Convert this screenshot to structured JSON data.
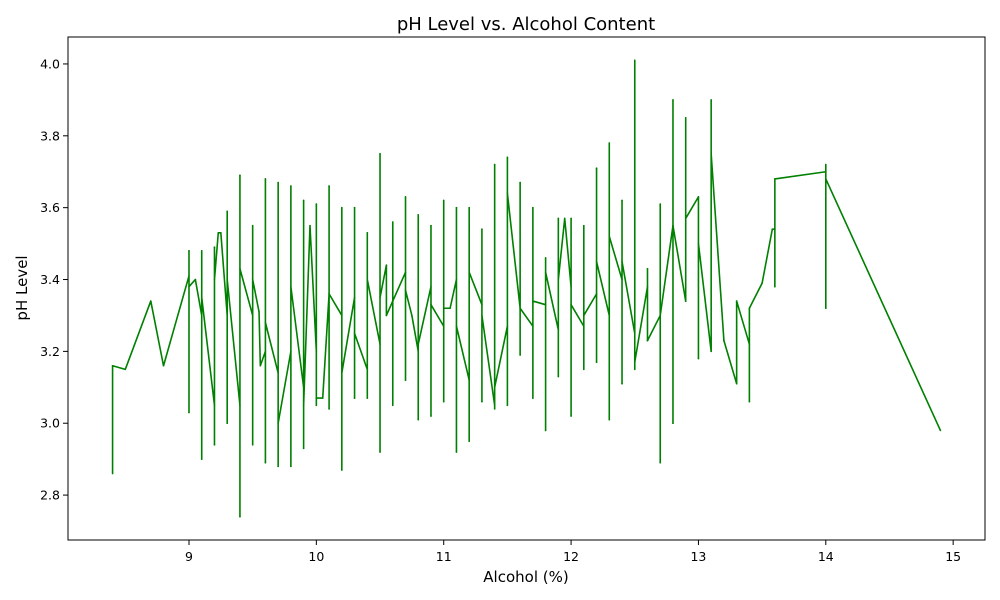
{
  "chart_data": {
    "type": "line",
    "title": "pH Level vs. Alcohol Content",
    "xlabel": "Alcohol (%)",
    "ylabel": "pH Level",
    "xlim": [
      8.05,
      15.25
    ],
    "ylim": [
      2.675,
      4.075
    ],
    "x_ticks": [
      9,
      10,
      11,
      12,
      13,
      14,
      15
    ],
    "y_ticks": [
      2.8,
      3.0,
      3.2,
      3.4,
      3.6,
      3.8,
      4.0
    ],
    "grid": false,
    "line_color": "#008000",
    "series": [
      {
        "points": [
          [
            8.4,
            2.86
          ],
          [
            8.4,
            3.16
          ],
          [
            8.5,
            3.15
          ],
          [
            8.7,
            3.34
          ],
          [
            8.8,
            3.16
          ],
          [
            9.0,
            3.41
          ],
          [
            9.0,
            3.03
          ],
          [
            9.0,
            3.48
          ],
          [
            9.0,
            3.38
          ],
          [
            9.05,
            3.4
          ],
          [
            9.1,
            3.3
          ],
          [
            9.1,
            2.9
          ],
          [
            9.1,
            3.48
          ],
          [
            9.1,
            3.35
          ],
          [
            9.2,
            3.05
          ],
          [
            9.2,
            2.94
          ],
          [
            9.2,
            3.49
          ],
          [
            9.2,
            3.4
          ],
          [
            9.23,
            3.53
          ],
          [
            9.25,
            3.53
          ],
          [
            9.3,
            3.3
          ],
          [
            9.3,
            3.0
          ],
          [
            9.3,
            3.59
          ],
          [
            9.3,
            3.4
          ],
          [
            9.4,
            3.05
          ],
          [
            9.4,
            2.74
          ],
          [
            9.4,
            3.69
          ],
          [
            9.4,
            3.43
          ],
          [
            9.5,
            3.3
          ],
          [
            9.5,
            2.94
          ],
          [
            9.5,
            3.55
          ],
          [
            9.5,
            3.4
          ],
          [
            9.55,
            3.31
          ],
          [
            9.56,
            3.16
          ],
          [
            9.6,
            3.2
          ],
          [
            9.6,
            2.89
          ],
          [
            9.6,
            3.68
          ],
          [
            9.6,
            3.28
          ],
          [
            9.7,
            3.14
          ],
          [
            9.7,
            2.88
          ],
          [
            9.7,
            3.67
          ],
          [
            9.7,
            3.0
          ],
          [
            9.8,
            3.2
          ],
          [
            9.8,
            2.88
          ],
          [
            9.8,
            3.66
          ],
          [
            9.8,
            3.38
          ],
          [
            9.9,
            3.1
          ],
          [
            9.9,
            2.93
          ],
          [
            9.9,
            3.62
          ],
          [
            9.9,
            3.05
          ],
          [
            9.95,
            3.55
          ],
          [
            10.0,
            3.2
          ],
          [
            10.0,
            3.05
          ],
          [
            10.0,
            3.61
          ],
          [
            10.0,
            3.07
          ],
          [
            10.05,
            3.07
          ],
          [
            10.1,
            3.36
          ],
          [
            10.1,
            3.04
          ],
          [
            10.1,
            3.66
          ],
          [
            10.1,
            3.36
          ],
          [
            10.2,
            3.3
          ],
          [
            10.2,
            2.87
          ],
          [
            10.2,
            3.6
          ],
          [
            10.2,
            3.14
          ],
          [
            10.3,
            3.35
          ],
          [
            10.3,
            3.07
          ],
          [
            10.3,
            3.6
          ],
          [
            10.3,
            3.25
          ],
          [
            10.4,
            3.15
          ],
          [
            10.4,
            3.07
          ],
          [
            10.4,
            3.53
          ],
          [
            10.4,
            3.4
          ],
          [
            10.5,
            3.22
          ],
          [
            10.5,
            2.92
          ],
          [
            10.5,
            3.75
          ],
          [
            10.5,
            3.35
          ],
          [
            10.55,
            3.44
          ],
          [
            10.55,
            3.3
          ],
          [
            10.6,
            3.34
          ],
          [
            10.6,
            3.05
          ],
          [
            10.6,
            3.56
          ],
          [
            10.6,
            3.34
          ],
          [
            10.7,
            3.42
          ],
          [
            10.7,
            3.12
          ],
          [
            10.7,
            3.63
          ],
          [
            10.7,
            3.37
          ],
          [
            10.75,
            3.3
          ],
          [
            10.8,
            3.2
          ],
          [
            10.8,
            3.01
          ],
          [
            10.8,
            3.58
          ],
          [
            10.8,
            3.22
          ],
          [
            10.9,
            3.38
          ],
          [
            10.9,
            3.02
          ],
          [
            10.9,
            3.55
          ],
          [
            10.9,
            3.33
          ],
          [
            11.0,
            3.27
          ],
          [
            11.0,
            3.06
          ],
          [
            11.0,
            3.62
          ],
          [
            11.0,
            3.32
          ],
          [
            11.05,
            3.32
          ],
          [
            11.1,
            3.4
          ],
          [
            11.1,
            2.92
          ],
          [
            11.1,
            3.6
          ],
          [
            11.1,
            3.27
          ],
          [
            11.2,
            3.12
          ],
          [
            11.2,
            2.95
          ],
          [
            11.2,
            3.6
          ],
          [
            11.2,
            3.42
          ],
          [
            11.3,
            3.33
          ],
          [
            11.3,
            3.06
          ],
          [
            11.3,
            3.54
          ],
          [
            11.3,
            3.3
          ],
          [
            11.4,
            3.05
          ],
          [
            11.4,
            3.04
          ],
          [
            11.4,
            3.72
          ],
          [
            11.4,
            3.1
          ],
          [
            11.5,
            3.27
          ],
          [
            11.5,
            3.05
          ],
          [
            11.5,
            3.74
          ],
          [
            11.5,
            3.64
          ],
          [
            11.6,
            3.32
          ],
          [
            11.6,
            3.19
          ],
          [
            11.6,
            3.67
          ],
          [
            11.6,
            3.32
          ],
          [
            11.7,
            3.27
          ],
          [
            11.7,
            3.07
          ],
          [
            11.7,
            3.6
          ],
          [
            11.7,
            3.34
          ],
          [
            11.8,
            3.33
          ],
          [
            11.8,
            2.98
          ],
          [
            11.8,
            3.46
          ],
          [
            11.8,
            3.42
          ],
          [
            11.9,
            3.26
          ],
          [
            11.9,
            3.13
          ],
          [
            11.9,
            3.57
          ],
          [
            11.9,
            3.4
          ],
          [
            11.95,
            3.57
          ],
          [
            12.0,
            3.38
          ],
          [
            12.0,
            3.02
          ],
          [
            12.0,
            3.57
          ],
          [
            12.0,
            3.33
          ],
          [
            12.1,
            3.27
          ],
          [
            12.1,
            3.15
          ],
          [
            12.1,
            3.55
          ],
          [
            12.1,
            3.3
          ],
          [
            12.2,
            3.36
          ],
          [
            12.2,
            3.17
          ],
          [
            12.2,
            3.71
          ],
          [
            12.2,
            3.45
          ],
          [
            12.3,
            3.3
          ],
          [
            12.3,
            3.01
          ],
          [
            12.3,
            3.78
          ],
          [
            12.3,
            3.52
          ],
          [
            12.4,
            3.4
          ],
          [
            12.4,
            3.11
          ],
          [
            12.4,
            3.62
          ],
          [
            12.4,
            3.45
          ],
          [
            12.5,
            3.25
          ],
          [
            12.5,
            3.15
          ],
          [
            12.5,
            4.01
          ],
          [
            12.5,
            3.17
          ],
          [
            12.6,
            3.38
          ],
          [
            12.6,
            3.23
          ],
          [
            12.6,
            3.43
          ],
          [
            12.6,
            3.23
          ],
          [
            12.7,
            3.3
          ],
          [
            12.7,
            2.89
          ],
          [
            12.7,
            3.61
          ],
          [
            12.7,
            3.3
          ],
          [
            12.8,
            3.55
          ],
          [
            12.8,
            3.0
          ],
          [
            12.8,
            3.9
          ],
          [
            12.8,
            3.55
          ],
          [
            12.9,
            3.34
          ],
          [
            12.9,
            3.34
          ],
          [
            12.9,
            3.85
          ],
          [
            12.9,
            3.57
          ],
          [
            13.0,
            3.63
          ],
          [
            13.0,
            3.18
          ],
          [
            13.0,
            3.63
          ],
          [
            13.0,
            3.5
          ],
          [
            13.1,
            3.2
          ],
          [
            13.1,
            3.9
          ],
          [
            13.1,
            3.75
          ],
          [
            13.2,
            3.23
          ],
          [
            13.3,
            3.11
          ],
          [
            13.3,
            3.34
          ],
          [
            13.4,
            3.22
          ],
          [
            13.4,
            3.06
          ],
          [
            13.4,
            3.32
          ],
          [
            13.5,
            3.39
          ],
          [
            13.58,
            3.54
          ],
          [
            13.6,
            3.54
          ],
          [
            13.6,
            3.38
          ],
          [
            13.6,
            3.68
          ],
          [
            14.0,
            3.7
          ],
          [
            14.0,
            3.32
          ],
          [
            14.0,
            3.72
          ],
          [
            14.0,
            3.68
          ],
          [
            14.9,
            2.98
          ]
        ]
      }
    ]
  }
}
